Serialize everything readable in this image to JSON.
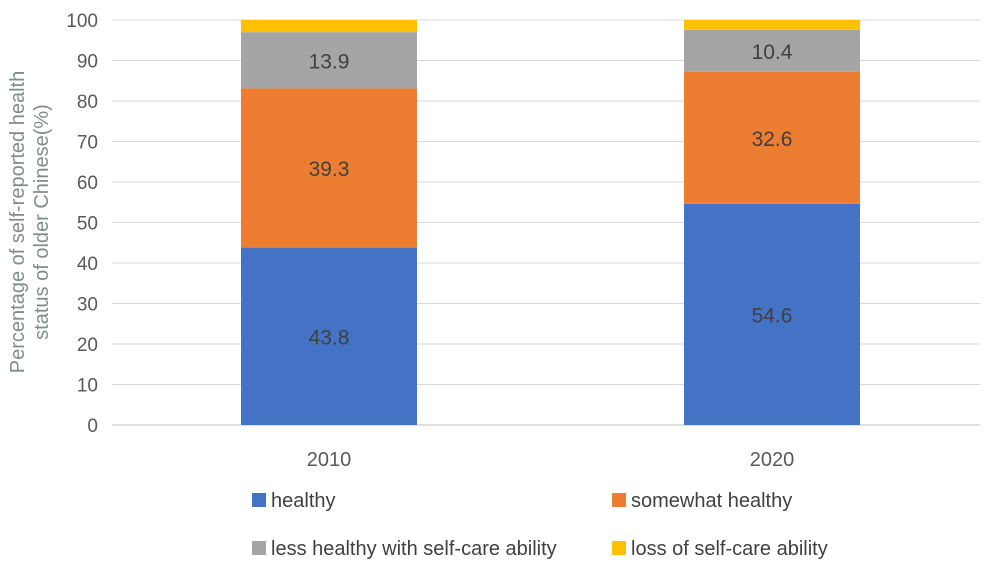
{
  "chart_data": {
    "type": "bar",
    "stacked": true,
    "title": "",
    "xlabel": "",
    "ylabel_lines": [
      "Percentage of self-reported health",
      "status of older Chinese(%)"
    ],
    "ylim": [
      0,
      100
    ],
    "yticks": [
      0,
      10,
      20,
      30,
      40,
      50,
      60,
      70,
      80,
      90,
      100
    ],
    "grid": true,
    "legend_position": "bottom",
    "categories": [
      "2010",
      "2020"
    ],
    "series": [
      {
        "name": "healthy",
        "color": "#4472c4",
        "values": [
          43.8,
          54.6
        ],
        "labels": [
          "43.8",
          "54.6"
        ]
      },
      {
        "name": "somewhat healthy",
        "color": "#ed7d31",
        "values": [
          39.3,
          32.6
        ],
        "labels": [
          "39.3",
          "32.6"
        ]
      },
      {
        "name": "less healthy with self-care ability",
        "color": "#a5a5a5",
        "values": [
          13.9,
          10.4
        ],
        "labels": [
          "13.9",
          "10.4"
        ]
      },
      {
        "name": "loss of self-care ability",
        "color": "#ffc000",
        "values": [
          3.0,
          2.4
        ],
        "labels": [
          "",
          ""
        ]
      }
    ]
  }
}
